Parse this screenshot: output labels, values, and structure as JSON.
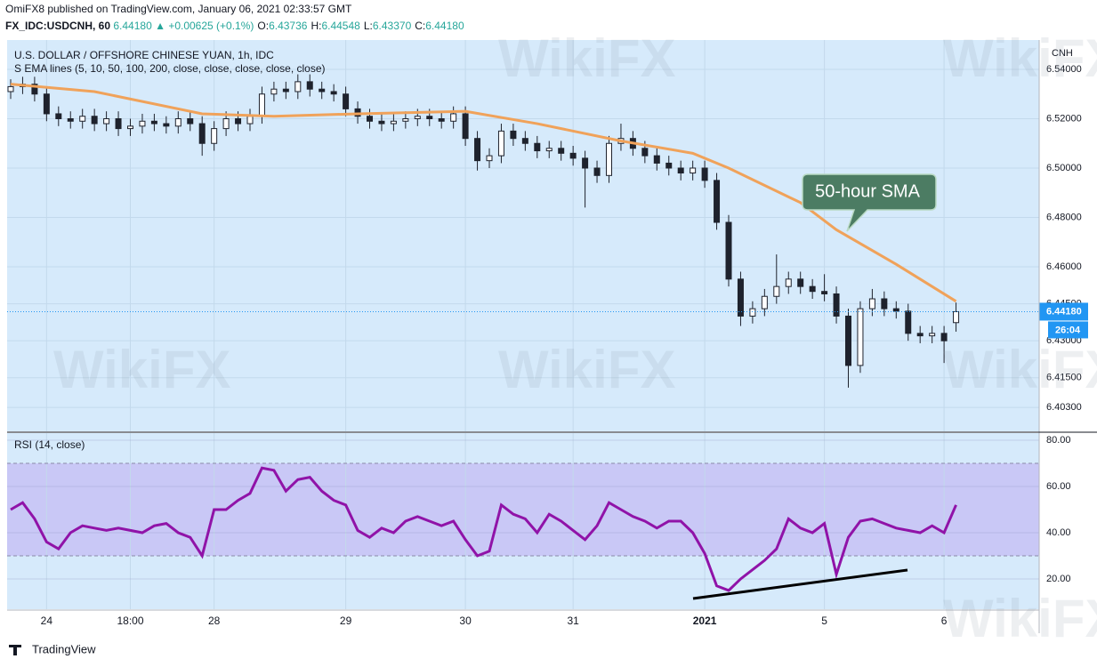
{
  "header": {
    "byline": "OmiFX8 published on TradingView.com, January 06, 2021 02:33:57 GMT",
    "symbol": "FX_IDC:USDCNH, 60",
    "price": "6.44180",
    "change": "▲ +0.00625 (+0.1%)",
    "ohlc": [
      [
        "O:",
        "6.43736"
      ],
      [
        "H:",
        "6.44548"
      ],
      [
        "L:",
        "6.43370"
      ],
      [
        "C:",
        "6.44180"
      ]
    ]
  },
  "watermark": "WikiFX",
  "footer": "TradingView",
  "chart_data": [
    {
      "type": "candlestick",
      "title": "U.S. DOLLAR / OFFSHORE CHINESE YUAN, 1h, IDC",
      "subtitle": "S EMA lines (5, 10, 50, 100, 200, close, close, close, close, close)",
      "y_label": "CNH",
      "color": "#1e222d",
      "up_fill": "#ffffff",
      "background": "#d6eafb",
      "categories": [
        null,
        null,
        null,
        "24",
        null,
        null,
        null,
        null,
        null,
        null,
        "18:00",
        null,
        null,
        null,
        null,
        null,
        null,
        "28",
        null,
        null,
        null,
        null,
        null,
        null,
        null,
        null,
        null,
        null,
        "29",
        null,
        null,
        null,
        null,
        null,
        null,
        null,
        null,
        null,
        "30",
        null,
        null,
        null,
        null,
        null,
        null,
        null,
        null,
        "31",
        null,
        null,
        null,
        null,
        null,
        null,
        null,
        null,
        null,
        null,
        "2021",
        null,
        null,
        null,
        null,
        null,
        null,
        null,
        null,
        null,
        "5",
        null,
        null,
        null,
        null,
        null,
        null,
        null,
        null,
        null,
        "6",
        null
      ],
      "open": [
        6.531,
        6.533,
        6.534,
        6.53,
        6.522,
        6.52,
        6.519,
        6.521,
        6.518,
        6.52,
        6.516,
        6.517,
        6.519,
        6.518,
        6.517,
        6.52,
        6.518,
        6.51,
        6.516,
        6.52,
        6.518,
        6.521,
        6.53,
        6.532,
        6.531,
        6.535,
        6.532,
        6.531,
        6.53,
        6.524,
        6.521,
        6.519,
        6.518,
        6.519,
        6.52,
        6.521,
        6.52,
        6.519,
        6.522,
        6.512,
        6.503,
        6.505,
        6.515,
        6.512,
        6.51,
        6.507,
        6.508,
        6.506,
        6.504,
        6.5,
        6.497,
        6.51,
        6.512,
        6.508,
        6.505,
        6.502,
        6.5,
        6.498,
        6.5,
        6.495,
        6.478,
        6.455,
        6.44,
        6.443,
        6.448,
        6.452,
        6.455,
        6.452,
        6.45,
        6.449,
        6.44,
        6.42,
        6.443,
        6.447,
        6.443,
        6.442,
        6.433,
        6.432,
        6.433,
        6.43736
      ],
      "high": [
        6.536,
        6.537,
        6.537,
        6.533,
        6.525,
        6.523,
        6.524,
        6.524,
        6.523,
        6.523,
        6.52,
        6.522,
        6.522,
        6.521,
        6.523,
        6.523,
        6.521,
        6.519,
        6.523,
        6.523,
        6.524,
        6.533,
        6.535,
        6.535,
        6.538,
        6.538,
        6.535,
        6.534,
        6.533,
        6.527,
        6.524,
        6.522,
        6.522,
        6.523,
        6.524,
        6.524,
        6.523,
        6.525,
        6.525,
        6.515,
        6.508,
        6.518,
        6.518,
        6.515,
        6.513,
        6.511,
        6.511,
        6.509,
        6.507,
        6.503,
        6.513,
        6.518,
        6.515,
        6.511,
        6.508,
        6.505,
        6.503,
        6.503,
        6.503,
        6.498,
        6.481,
        6.458,
        6.446,
        6.451,
        6.465,
        6.458,
        6.458,
        6.455,
        6.457,
        6.452,
        6.443,
        6.446,
        6.451,
        6.45,
        6.446,
        6.445,
        6.436,
        6.436,
        6.436,
        6.44548
      ],
      "low": [
        6.528,
        6.53,
        6.527,
        6.519,
        6.517,
        6.516,
        6.516,
        6.515,
        6.515,
        6.513,
        6.513,
        6.514,
        6.515,
        6.514,
        6.514,
        6.515,
        6.505,
        6.507,
        6.513,
        6.515,
        6.515,
        6.518,
        6.527,
        6.528,
        6.528,
        6.529,
        6.528,
        6.527,
        6.521,
        6.518,
        6.516,
        6.515,
        6.515,
        6.516,
        6.517,
        6.517,
        6.516,
        6.516,
        6.509,
        6.499,
        6.5,
        6.502,
        6.509,
        6.507,
        6.504,
        6.504,
        6.503,
        6.501,
        6.484,
        6.494,
        6.494,
        6.507,
        6.505,
        6.502,
        6.499,
        6.497,
        6.495,
        6.495,
        6.492,
        6.475,
        6.452,
        6.436,
        6.437,
        6.44,
        6.445,
        6.449,
        6.449,
        6.447,
        6.446,
        6.437,
        6.411,
        6.417,
        6.44,
        6.44,
        6.439,
        6.43,
        6.429,
        6.429,
        6.421,
        6.4337
      ],
      "close": [
        6.533,
        6.534,
        6.53,
        6.522,
        6.52,
        6.519,
        6.521,
        6.518,
        6.52,
        6.516,
        6.517,
        6.519,
        6.518,
        6.517,
        6.52,
        6.518,
        6.51,
        6.516,
        6.52,
        6.518,
        6.521,
        6.53,
        6.532,
        6.531,
        6.535,
        6.532,
        6.531,
        6.53,
        6.524,
        6.521,
        6.519,
        6.518,
        6.519,
        6.52,
        6.521,
        6.52,
        6.519,
        6.522,
        6.512,
        6.503,
        6.505,
        6.515,
        6.512,
        6.51,
        6.507,
        6.508,
        6.506,
        6.504,
        6.5,
        6.497,
        6.51,
        6.512,
        6.508,
        6.505,
        6.502,
        6.5,
        6.498,
        6.5,
        6.495,
        6.478,
        6.455,
        6.44,
        6.443,
        6.448,
        6.452,
        6.455,
        6.452,
        6.45,
        6.449,
        6.44,
        6.42,
        6.443,
        6.447,
        6.443,
        6.442,
        6.433,
        6.432,
        6.433,
        6.43,
        6.4418
      ],
      "sma": {
        "name": "50-hour SMA",
        "color": "#f0a25a",
        "x": [
          0,
          7,
          16,
          22,
          29,
          38,
          44,
          51,
          57,
          60,
          66,
          69,
          74,
          79
        ],
        "values": [
          6.534,
          6.531,
          6.522,
          6.521,
          6.522,
          6.523,
          6.518,
          6.511,
          6.506,
          6.5,
          6.486,
          6.475,
          6.461,
          6.446
        ]
      },
      "last_price": {
        "value": 6.4418,
        "label": "6.44180"
      },
      "countdown": "26:04",
      "label_color": "#2196f3",
      "ylim": [
        6.3933,
        6.5519
      ],
      "yticks": [
        {
          "value": 6.54,
          "label": "6.54000"
        },
        {
          "value": 6.52,
          "label": "6.52000"
        },
        {
          "value": 6.5,
          "label": "6.50000"
        },
        {
          "value": 6.48,
          "label": "6.48000"
        },
        {
          "value": 6.46,
          "label": "6.46000"
        },
        {
          "value": 6.445,
          "label": "6.44500"
        },
        {
          "value": 6.43,
          "label": "6.43000"
        },
        {
          "value": 6.415,
          "label": "6.41500"
        },
        {
          "value": 6.403,
          "label": "6.40300"
        }
      ],
      "grid": true
    },
    {
      "type": "line",
      "title": "RSI (14, close)",
      "color": "#9013a8",
      "background": "#d6eafb",
      "band": [
        30,
        70
      ],
      "band_color": "#c9c8f6",
      "values": [
        50,
        53,
        46,
        36,
        33,
        40,
        43,
        42,
        41,
        42,
        41,
        40,
        43,
        44,
        40,
        38,
        30,
        50,
        50,
        54,
        57,
        68,
        67,
        58,
        63,
        64,
        58,
        54,
        52,
        41,
        38,
        42,
        40,
        45,
        47,
        45,
        43,
        45,
        37,
        30,
        32,
        52,
        48,
        46,
        40,
        48,
        45,
        41,
        37,
        43,
        53,
        50,
        47,
        45,
        42,
        45,
        45,
        40,
        31,
        17,
        15,
        20,
        24,
        28,
        33,
        46,
        42,
        40,
        44,
        22,
        38,
        45,
        46,
        44,
        42,
        41,
        40,
        43,
        40,
        52
      ],
      "ylim": [
        6.9,
        83.1
      ],
      "yticks": [
        {
          "value": 80,
          "label": "80.00"
        },
        {
          "value": 60,
          "label": "60.00"
        },
        {
          "value": 40,
          "label": "40.00"
        },
        {
          "value": 20,
          "label": "20.00"
        }
      ],
      "grid": true
    }
  ]
}
